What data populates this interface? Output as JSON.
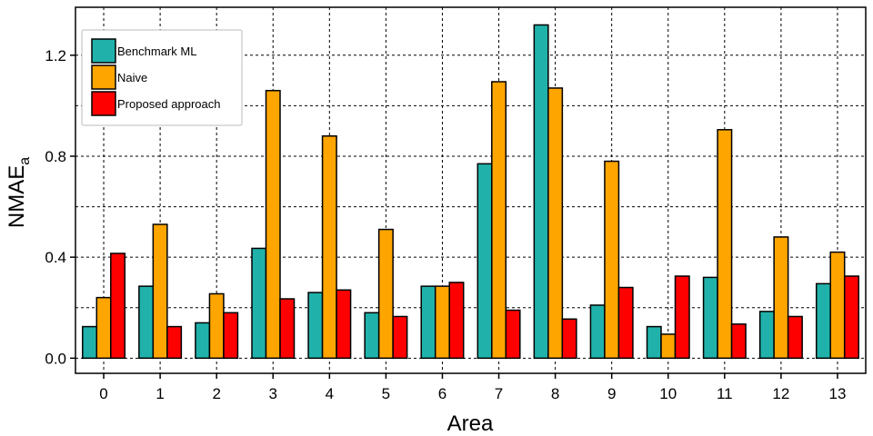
{
  "chart_data": {
    "type": "bar",
    "categories": [
      "0",
      "1",
      "2",
      "3",
      "4",
      "5",
      "6",
      "7",
      "8",
      "9",
      "10",
      "11",
      "12",
      "13"
    ],
    "series": [
      {
        "name": "Benchmark ML",
        "color": "#20b2aa",
        "values": [
          0.125,
          0.285,
          0.14,
          0.435,
          0.26,
          0.18,
          0.285,
          0.77,
          1.32,
          0.21,
          0.125,
          0.32,
          0.185,
          0.295
        ]
      },
      {
        "name": "Naive",
        "color": "#ffa500",
        "values": [
          0.24,
          0.53,
          0.255,
          1.06,
          0.88,
          0.51,
          0.285,
          1.095,
          1.07,
          0.78,
          0.095,
          0.905,
          0.48,
          0.42
        ]
      },
      {
        "name": "Proposed approach",
        "color": "#ff0000",
        "values": [
          0.415,
          0.125,
          0.18,
          0.235,
          0.27,
          0.165,
          0.3,
          0.19,
          0.155,
          0.28,
          0.325,
          0.135,
          0.165,
          0.325
        ]
      }
    ],
    "xlabel": "Area",
    "ylabel": "NMAE",
    "ylabel_subscript": "a",
    "ylim": [
      -0.06,
      1.39
    ],
    "yticks": [
      "0.0",
      "0.4",
      "0.8",
      "1.2"
    ],
    "ytick_values": [
      0.0,
      0.4,
      0.8,
      1.2
    ],
    "ygrid_values": [
      0.0,
      0.2,
      0.4,
      0.6,
      0.8,
      1.0,
      1.2
    ],
    "grid": true,
    "legend_position": "top-left"
  }
}
